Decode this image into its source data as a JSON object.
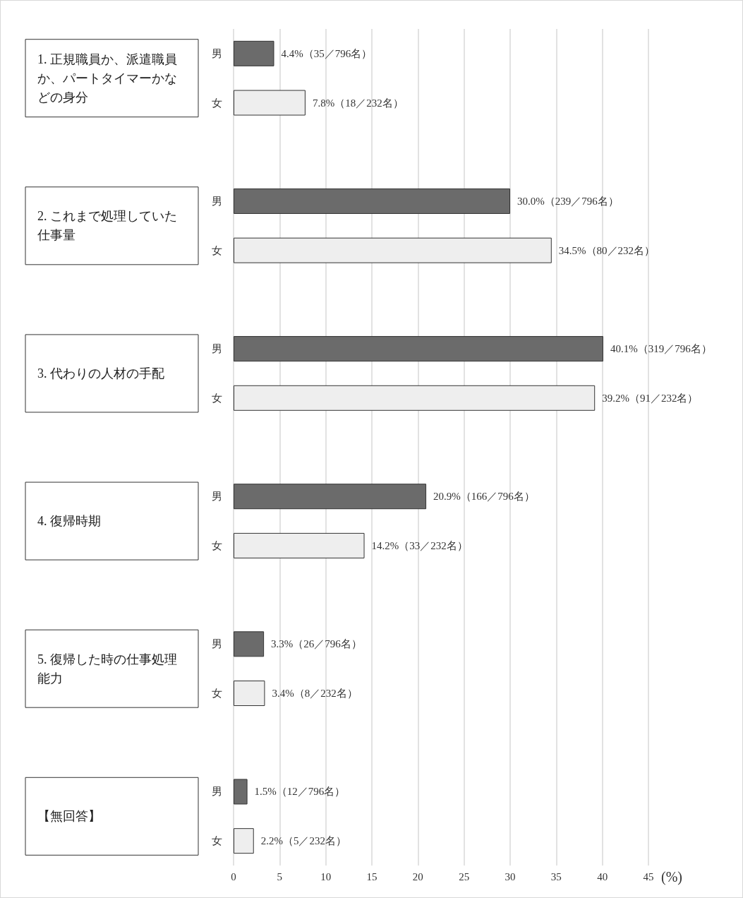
{
  "chart_data": {
    "type": "bar",
    "orientation": "horizontal",
    "categories": [
      "男",
      "女",
      null,
      "男",
      "女",
      null,
      "男",
      "女",
      null,
      "男",
      "女",
      null,
      "男",
      "女",
      null,
      "男",
      "女"
    ],
    "values": [
      4.4,
      7.8,
      null,
      30.0,
      34.5,
      null,
      40.1,
      39.2,
      null,
      20.9,
      14.2,
      null,
      3.3,
      3.4,
      null,
      1.5,
      2.2
    ],
    "colors": [
      "#6b6b6b",
      "#eeeeee",
      null,
      "#6b6b6b",
      "#eeeeee",
      null,
      "#6b6b6b",
      "#eeeeee",
      null,
      "#6b6b6b",
      "#eeeeee",
      null,
      "#6b6b6b",
      "#eeeeee",
      null,
      "#6b6b6b",
      "#eeeeee"
    ],
    "value_labels": [
      "4.4%（35／796名）",
      "7.8%（18／232名）",
      null,
      "30.0%（239／796名）",
      "34.5%（80／232名）",
      null,
      "40.1%（319／796名）",
      "39.2%（91／232名）",
      null,
      "20.9%（166／796名）",
      "14.2%（33／232名）",
      null,
      "3.3%（26／796名）",
      "3.4%（8／232名）",
      null,
      "1.5%（12／796名）",
      "2.2%（5／232名）"
    ],
    "annotations": [
      "1. 正規職員か、派遣職員か、パートタイマーかなどの身分",
      "2. これまで処理していた仕事量",
      "3. 代わりの人材の手配",
      "4. 復帰時期",
      "5. 復帰した時の仕事処理能力",
      "【無回答】"
    ],
    "xlabel": "(%)",
    "xlim": [
      0,
      45
    ],
    "xticks": [
      0,
      5,
      10,
      15,
      20,
      25,
      30,
      35,
      40,
      45
    ],
    "grid": "x"
  }
}
